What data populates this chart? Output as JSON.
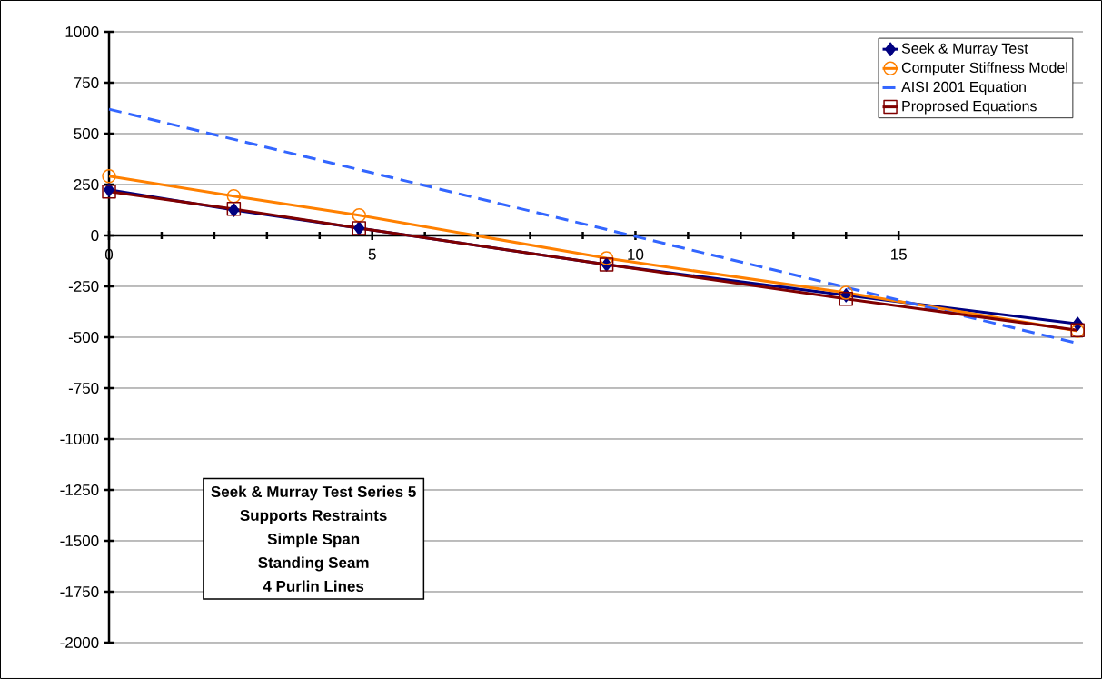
{
  "chart_data": {
    "type": "line",
    "x": [
      0,
      2.37,
      4.75,
      9.45,
      14.0,
      18.4
    ],
    "series": [
      {
        "name": "Seek & Murray Test",
        "color": "#000080",
        "marker": "diamond",
        "line_style": "solid",
        "values": [
          224,
          125,
          36,
          -143,
          -294,
          -434
        ]
      },
      {
        "name": "Computer Stiffness Model",
        "color": "#ff8000",
        "marker": "circle",
        "line_style": "solid",
        "values": [
          291,
          193,
          99,
          -112,
          -281,
          -469
        ]
      },
      {
        "name": "AISI 2001 Equation",
        "color": "#3366ff",
        "marker": "none",
        "line_style": "dashed",
        "x": [
          0,
          18.4
        ],
        "values": [
          620,
          -530
        ]
      },
      {
        "name": "Proprosed Equations",
        "color": "#800000",
        "marker": "square",
        "line_style": "solid",
        "values": [
          215,
          130,
          36,
          -143,
          -311,
          -465
        ]
      }
    ],
    "xlim": [
      0,
      18.5
    ],
    "xticks": [
      0,
      5,
      10,
      15
    ],
    "ylim": [
      -2000,
      1000
    ],
    "yticks": [
      -2000,
      -1750,
      -1500,
      -1250,
      -1000,
      -750,
      -500,
      -250,
      0,
      250,
      500,
      750,
      1000
    ],
    "grid": "y",
    "legend": "top right",
    "annotations": [
      "Seek & Murray Test Series 5",
      "Supports Restraints",
      "Simple Span",
      "Standing Seam",
      "4 Purlin Lines"
    ]
  }
}
